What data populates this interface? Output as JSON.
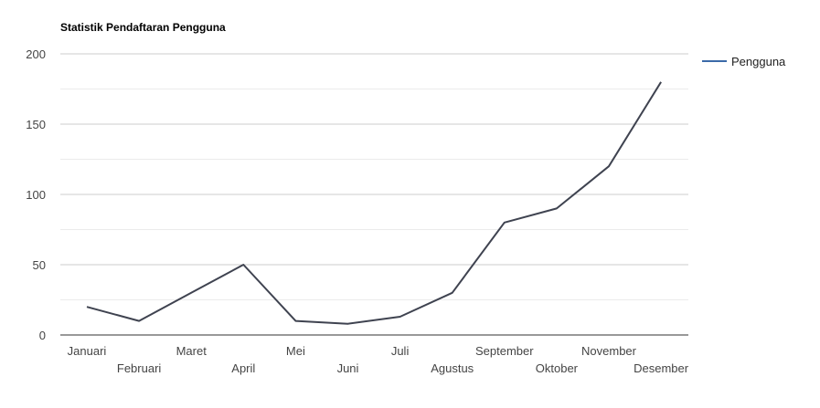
{
  "chart_data": {
    "type": "line",
    "title": "Statistik Pendaftaran Pengguna",
    "xlabel": "",
    "ylabel": "",
    "categories": [
      "Januari",
      "Februari",
      "Maret",
      "April",
      "Mei",
      "Juni",
      "Juli",
      "Agustus",
      "September",
      "Oktober",
      "November",
      "Desember"
    ],
    "series": [
      {
        "name": "Pengguna",
        "values": [
          20,
          10,
          30,
          50,
          10,
          8,
          13,
          30,
          80,
          90,
          120,
          180
        ]
      }
    ],
    "ylim": [
      0,
      200
    ],
    "yticks": [
      0,
      50,
      100,
      150,
      200
    ],
    "grid": true,
    "legend_position": "right",
    "colors": {
      "line": "#3f4350",
      "legend_line": "#3b6aa8",
      "grid": "#cccccc",
      "minor_grid": "#ebebeb",
      "axis": "#333333"
    }
  }
}
